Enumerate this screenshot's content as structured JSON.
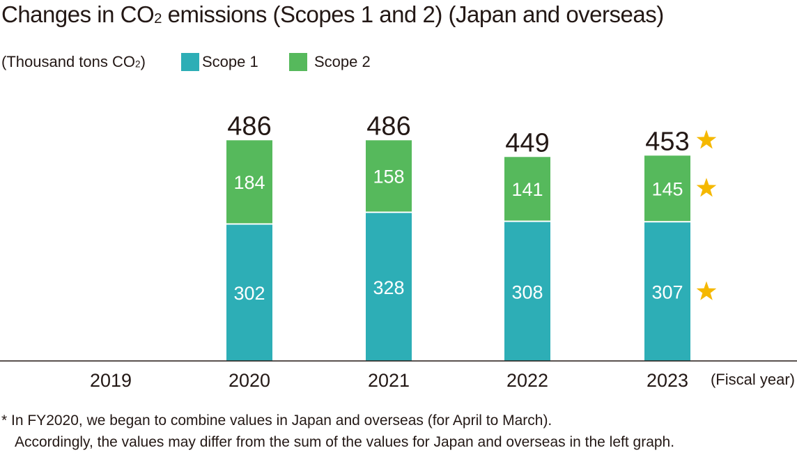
{
  "title_prefix": "Changes in CO",
  "title_sub": "2",
  "title_suffix": " emissions (Scopes 1 and 2) (Japan and overseas)",
  "unit_prefix": "(Thousand tons CO",
  "unit_sub": "2",
  "unit_suffix": ")",
  "x_unit": "(Fiscal year)",
  "footnote_line1": "* In FY2020, we began to combine values in Japan and overseas (for April to March).",
  "footnote_line2": "Accordingly, the values may differ from the sum of the values for Japan and overseas in the left graph.",
  "chart_data": {
    "type": "bar",
    "stacked": true,
    "categories": [
      "2019",
      "2020",
      "2021",
      "2022",
      "2023"
    ],
    "series": [
      {
        "name": "Scope 1",
        "color": "#2daeb6",
        "values": [
          null,
          302,
          328,
          308,
          307
        ]
      },
      {
        "name": "Scope 2",
        "color": "#56b95c",
        "values": [
          null,
          184,
          158,
          141,
          145
        ]
      }
    ],
    "totals": [
      null,
      486,
      486,
      449,
      453
    ],
    "star_marks": {
      "category": "2023",
      "on_total": true,
      "on_series": [
        "Scope 1",
        "Scope 2"
      ],
      "color": "#f5b800"
    },
    "grid": false,
    "legend_position": "top-left"
  }
}
